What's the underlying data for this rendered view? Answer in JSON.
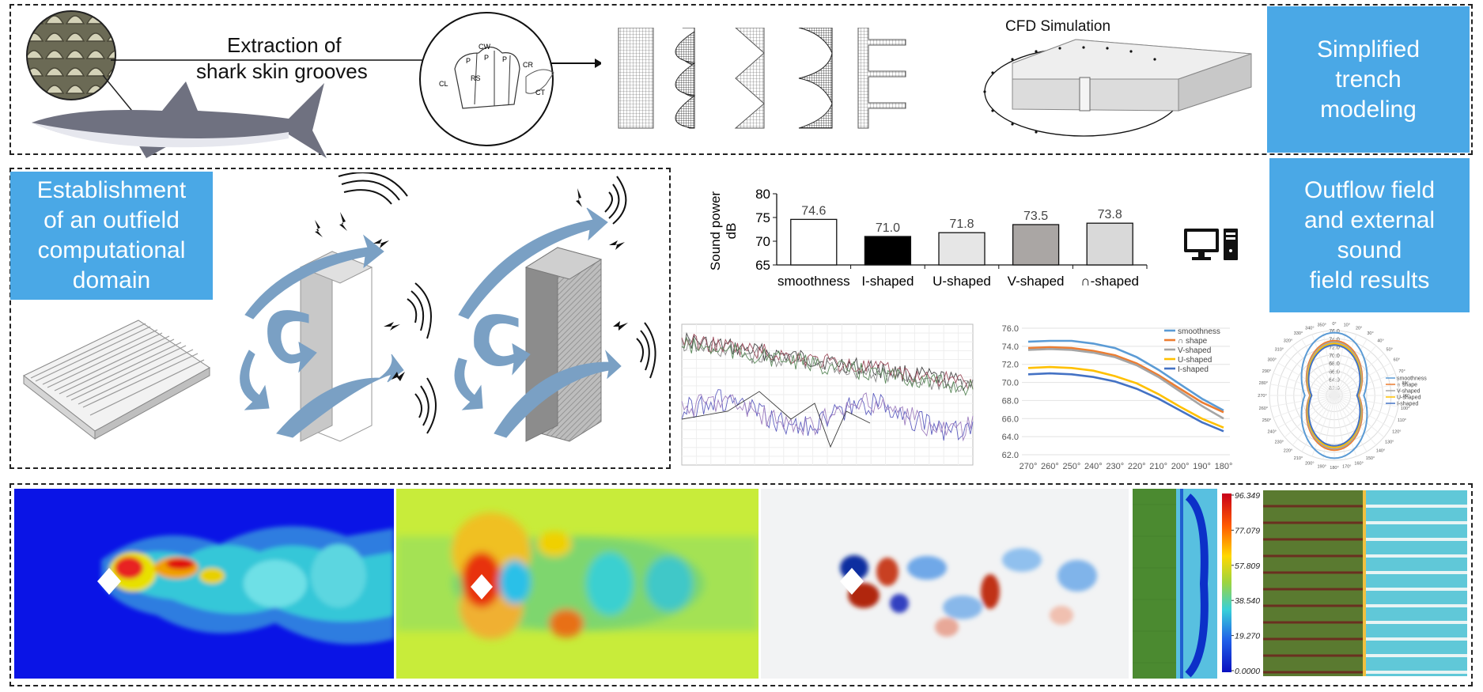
{
  "top_row": {
    "extraction_label_line1": "Extraction of",
    "extraction_label_line2": "shark skin grooves",
    "groove_labels": [
      "CW",
      "P",
      "P",
      "P",
      "CR",
      "CL",
      "RS",
      "CT"
    ],
    "cfd_label": "CFD Simulation",
    "simplified_box_lines": [
      "Simplified",
      "trench",
      "modeling"
    ]
  },
  "middle_row": {
    "establishment_box_lines": [
      "Establishment",
      "of an outfield",
      "computational",
      "domain"
    ],
    "outflow_box_lines": [
      "Outflow field",
      "and external",
      "sound",
      " field results"
    ]
  },
  "chart_data": [
    {
      "type": "bar",
      "ylabel": "Sound power dB",
      "ylabel_line1": "Sound power",
      "ylabel_line2": "dB",
      "categories": [
        "smoothness",
        "I-shaped",
        "U-shaped",
        "V-shaped",
        "∩-shaped"
      ],
      "values": [
        74.6,
        71.0,
        71.8,
        73.5,
        73.8
      ],
      "value_labels": [
        "74.6",
        "71.0",
        "71.8",
        "73.5",
        "73.8"
      ],
      "bar_colors": [
        "#ffffff",
        "#000000",
        "#e6e6e6",
        "#aaa6a4",
        "#d9d9d9"
      ],
      "ylim": [
        65,
        80
      ],
      "yticks": [
        "65",
        "70",
        "75",
        "80"
      ]
    },
    {
      "type": "line",
      "x": [
        "270°",
        "260°",
        "250°",
        "240°",
        "230°",
        "220°",
        "210°",
        "200°",
        "190°",
        "180°"
      ],
      "yticks": [
        "62.0",
        "64.0",
        "66.0",
        "68.0",
        "70.0",
        "72.0",
        "74.0",
        "76.0"
      ],
      "ylim": [
        62,
        76
      ],
      "legend_position": "top-right",
      "series": [
        {
          "name": "smoothness",
          "color": "#5b9bd5",
          "values": [
            74.5,
            74.6,
            74.6,
            74.3,
            73.8,
            72.8,
            71.4,
            69.8,
            68.2,
            66.9
          ]
        },
        {
          "name": "∩ shape",
          "color": "#ed7d31",
          "values": [
            73.8,
            73.9,
            73.8,
            73.5,
            73.0,
            72.1,
            70.8,
            69.3,
            67.8,
            66.7
          ]
        },
        {
          "name": "V-shaped",
          "color": "#a5a5a5",
          "values": [
            73.6,
            73.7,
            73.6,
            73.3,
            72.8,
            71.9,
            70.6,
            69.0,
            67.4,
            66.0
          ]
        },
        {
          "name": "U-shaped",
          "color": "#ffc000",
          "values": [
            71.6,
            71.7,
            71.6,
            71.3,
            70.7,
            69.9,
            68.7,
            67.3,
            66.0,
            65.0
          ]
        },
        {
          "name": "I-shaped",
          "color": "#4472c4",
          "values": [
            70.9,
            71.0,
            70.9,
            70.6,
            70.1,
            69.3,
            68.2,
            66.9,
            65.6,
            64.6
          ]
        }
      ]
    },
    {
      "type": "polar",
      "rticks": [
        "60.0",
        "62.0",
        "64.0",
        "66.0",
        "68.0",
        "70.0",
        "72.0",
        "74.0",
        "76.0"
      ],
      "angle_ticks": [
        "0°",
        "10°",
        "20°",
        "30°",
        "40°",
        "50°",
        "60°",
        "70°",
        "80°",
        "90°",
        "100°",
        "110°",
        "120°",
        "130°",
        "140°",
        "150°",
        "160°",
        "170°",
        "180°",
        "190°",
        "200°",
        "210°",
        "220°",
        "230°",
        "240°",
        "250°",
        "260°",
        "270°",
        "280°",
        "290°",
        "300°",
        "310°",
        "320°",
        "330°",
        "340°",
        "350°"
      ],
      "rlim": [
        60,
        76
      ],
      "series": [
        {
          "name": "smoothness",
          "color": "#5b9bd5"
        },
        {
          "name": "∩ shape",
          "color": "#ed7d31"
        },
        {
          "name": "V-shaped",
          "color": "#a5a5a5"
        },
        {
          "name": "U-shaped",
          "color": "#ffc000"
        },
        {
          "name": "I-shaped",
          "color": "#4472c4"
        }
      ]
    },
    {
      "type": "colorbar",
      "ticks": [
        "96.349",
        "77.079",
        "57.809",
        "38.540",
        "19.270",
        "0.0000"
      ]
    }
  ]
}
